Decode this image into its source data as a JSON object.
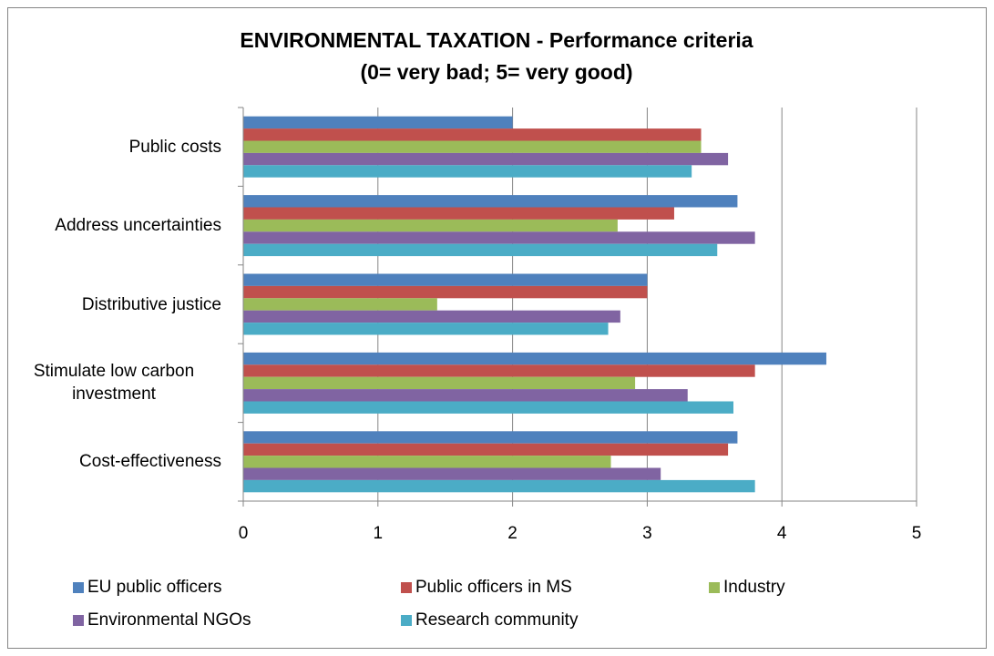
{
  "chart_data": {
    "type": "bar",
    "orientation": "horizontal",
    "title": "ENVIRONMENTAL TAXATION - Performance criteria",
    "subtitle": "(0= very bad; 5= very good)",
    "categories": [
      "Public costs",
      "Address uncertainties",
      "Distributive justice",
      "Stimulate low carbon investment",
      "Cost-effectiveness"
    ],
    "series": [
      {
        "name": "EU public officers",
        "color": "#4f81bd",
        "values": [
          2.0,
          3.67,
          3.0,
          4.33,
          3.67
        ]
      },
      {
        "name": "Public officers in MS",
        "color": "#c0504d",
        "values": [
          3.4,
          3.2,
          3.0,
          3.8,
          3.6
        ]
      },
      {
        "name": "Industry",
        "color": "#9bbb59",
        "values": [
          3.4,
          2.78,
          1.44,
          2.91,
          2.73
        ]
      },
      {
        "name": "Environmental NGOs",
        "color": "#8064a2",
        "values": [
          3.6,
          3.8,
          2.8,
          3.3,
          3.1
        ]
      },
      {
        "name": "Research community",
        "color": "#4bacc6",
        "values": [
          3.33,
          3.52,
          2.71,
          3.64,
          3.8
        ]
      }
    ],
    "xlim": [
      0,
      5
    ],
    "xticks": [
      0,
      1,
      2,
      3,
      4,
      5
    ],
    "grid": true,
    "legend": "bottom"
  }
}
